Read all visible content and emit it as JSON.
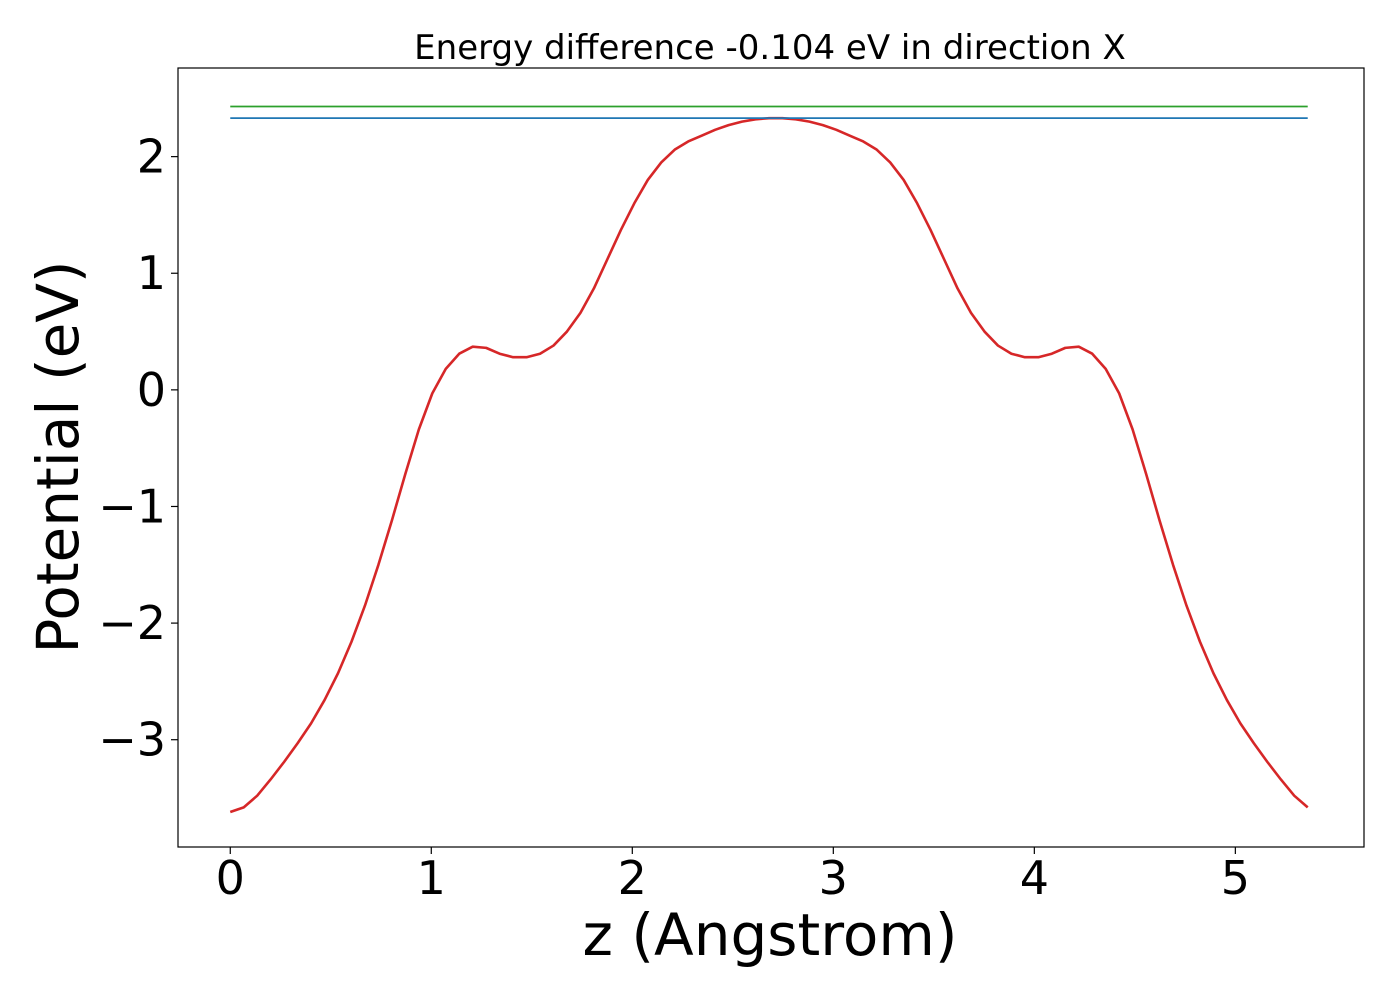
{
  "chart_data": {
    "type": "line",
    "title": "Energy difference -0.104 eV in direction X",
    "xlabel": "z (Angstrom)",
    "ylabel": "Potential (eV)",
    "xlim": [
      -0.26,
      5.64
    ],
    "ylim": [
      -3.92,
      2.76
    ],
    "xticks": [
      0,
      1,
      2,
      3,
      4,
      5
    ],
    "yticks": [
      -3,
      -2,
      -1,
      0,
      1,
      2
    ],
    "xtick_labels": [
      "0",
      "1",
      "2",
      "3",
      "4",
      "5"
    ],
    "ytick_labels": [
      "−3",
      "−2",
      "−1",
      "0",
      "1",
      "2"
    ],
    "grid": false,
    "legend": "none",
    "series": [
      {
        "color": "#d62728",
        "x": [
          0.0,
          0.067,
          0.134,
          0.201,
          0.268,
          0.335,
          0.402,
          0.469,
          0.536,
          0.603,
          0.67,
          0.737,
          0.804,
          0.871,
          0.938,
          1.005,
          1.072,
          1.139,
          1.206,
          1.273,
          1.34,
          1.407,
          1.474,
          1.541,
          1.608,
          1.675,
          1.742,
          1.809,
          1.876,
          1.943,
          2.01,
          2.077,
          2.144,
          2.211,
          2.278,
          2.345,
          2.412,
          2.479,
          2.546,
          2.613,
          2.68,
          2.747,
          2.814,
          2.881,
          2.948,
          3.015,
          3.082,
          3.149,
          3.216,
          3.283,
          3.35,
          3.417,
          3.484,
          3.551,
          3.618,
          3.685,
          3.752,
          3.819,
          3.886,
          3.953,
          4.02,
          4.087,
          4.154,
          4.221,
          4.288,
          4.355,
          4.422,
          4.489,
          4.556,
          4.623,
          4.69,
          4.757,
          4.824,
          4.891,
          4.958,
          5.025,
          5.092,
          5.159,
          5.226,
          5.293,
          5.36
        ],
        "y": [
          -3.62,
          -3.58,
          -3.48,
          -3.34,
          -3.19,
          -3.03,
          -2.86,
          -2.66,
          -2.43,
          -2.16,
          -1.85,
          -1.5,
          -1.12,
          -0.72,
          -0.34,
          -0.03,
          0.18,
          0.31,
          0.37,
          0.36,
          0.31,
          0.28,
          0.28,
          0.31,
          0.38,
          0.5,
          0.66,
          0.87,
          1.12,
          1.37,
          1.6,
          1.8,
          1.95,
          2.06,
          2.13,
          2.18,
          2.23,
          2.27,
          2.3,
          2.32,
          2.33,
          2.33,
          2.32,
          2.3,
          2.27,
          2.23,
          2.18,
          2.13,
          2.06,
          1.95,
          1.8,
          1.6,
          1.37,
          1.12,
          0.87,
          0.66,
          0.5,
          0.38,
          0.31,
          0.28,
          0.28,
          0.31,
          0.36,
          0.37,
          0.31,
          0.18,
          -0.03,
          -0.34,
          -0.72,
          -1.12,
          -1.5,
          -1.85,
          -2.16,
          -2.43,
          -2.66,
          -2.86,
          -3.03,
          -3.19,
          -3.34,
          -3.48,
          -3.58
        ]
      },
      {
        "color": "#1f77b4",
        "x": [
          0.0,
          5.36
        ],
        "y": [
          2.33,
          2.33
        ]
      },
      {
        "color": "#2ca02c",
        "x": [
          0.0,
          5.36
        ],
        "y": [
          2.43,
          2.43
        ]
      }
    ]
  }
}
